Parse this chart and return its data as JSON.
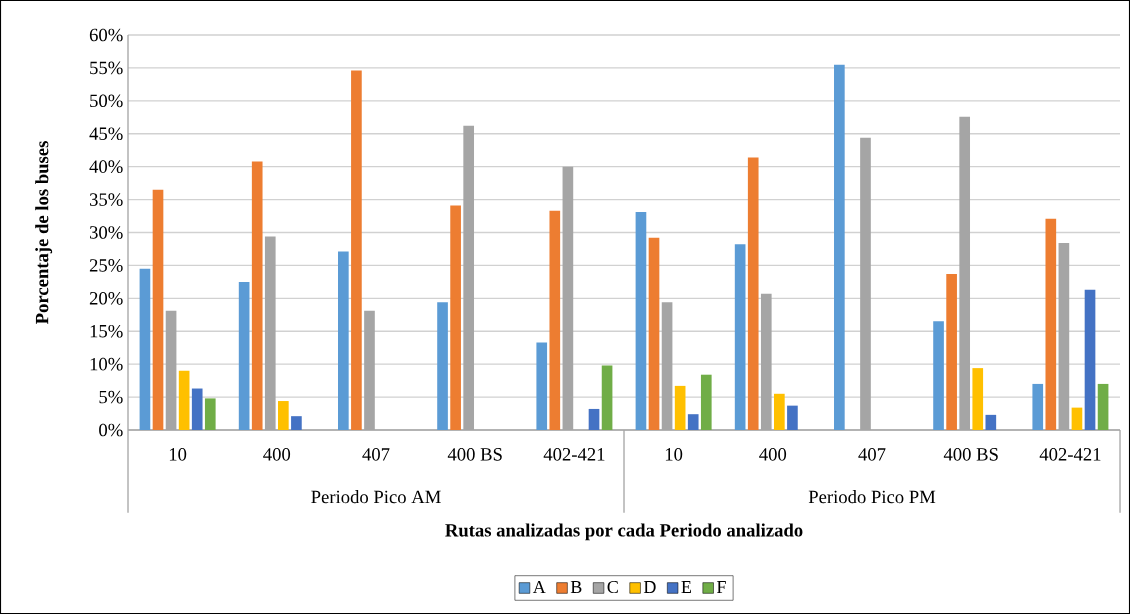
{
  "chart_data": {
    "type": "bar",
    "xlabel": "Rutas analizadas por cada Periodo analizado",
    "ylabel": "Porcentaje de los buses",
    "categories": [
      "10",
      "400",
      "407",
      "400 BS",
      "402-421",
      "10",
      "400",
      "407",
      "400 BS",
      "402-421"
    ],
    "annotations": [
      "Periodo Pico AM",
      "Periodo Pico PM"
    ],
    "series": [
      {
        "name": "A",
        "color": "#5b9bd5",
        "values": [
          24.5,
          22.5,
          27.1,
          19.4,
          13.3,
          33.1,
          28.2,
          55.5,
          16.5,
          7.0
        ]
      },
      {
        "name": "B",
        "color": "#ed7d31",
        "values": [
          36.5,
          40.8,
          54.6,
          34.1,
          33.3,
          29.2,
          41.4,
          0,
          23.7,
          32.1
        ]
      },
      {
        "name": "C",
        "color": "#a5a5a5",
        "values": [
          18.1,
          29.4,
          18.1,
          46.2,
          40.0,
          19.4,
          20.7,
          44.4,
          47.6,
          28.4
        ]
      },
      {
        "name": "D",
        "color": "#ffc000",
        "values": [
          9.0,
          4.4,
          0,
          0,
          0,
          6.7,
          5.5,
          0,
          9.4,
          3.4
        ]
      },
      {
        "name": "E",
        "color": "#4472c4",
        "values": [
          6.3,
          2.1,
          0,
          0,
          3.2,
          2.4,
          3.7,
          0,
          2.3,
          21.3
        ]
      },
      {
        "name": "F",
        "color": "#70ad47",
        "values": [
          4.8,
          0,
          0,
          0,
          9.8,
          8.4,
          0,
          0,
          0,
          7.0
        ]
      }
    ],
    "ylim": [
      0,
      60
    ],
    "yticks": [
      {
        "value": 0,
        "label": "0%"
      },
      {
        "value": 5,
        "label": "5%"
      },
      {
        "value": 10,
        "label": "10%"
      },
      {
        "value": 15,
        "label": "15%"
      },
      {
        "value": 20,
        "label": "20%"
      },
      {
        "value": 25,
        "label": "25%"
      },
      {
        "value": 30,
        "label": "30%"
      },
      {
        "value": 35,
        "label": "35%"
      },
      {
        "value": 40,
        "label": "40%"
      },
      {
        "value": 45,
        "label": "45%"
      },
      {
        "value": 50,
        "label": "50%"
      },
      {
        "value": 55,
        "label": "55%"
      },
      {
        "value": 60,
        "label": "60%"
      }
    ],
    "grid": "y",
    "legend": "bottom"
  }
}
